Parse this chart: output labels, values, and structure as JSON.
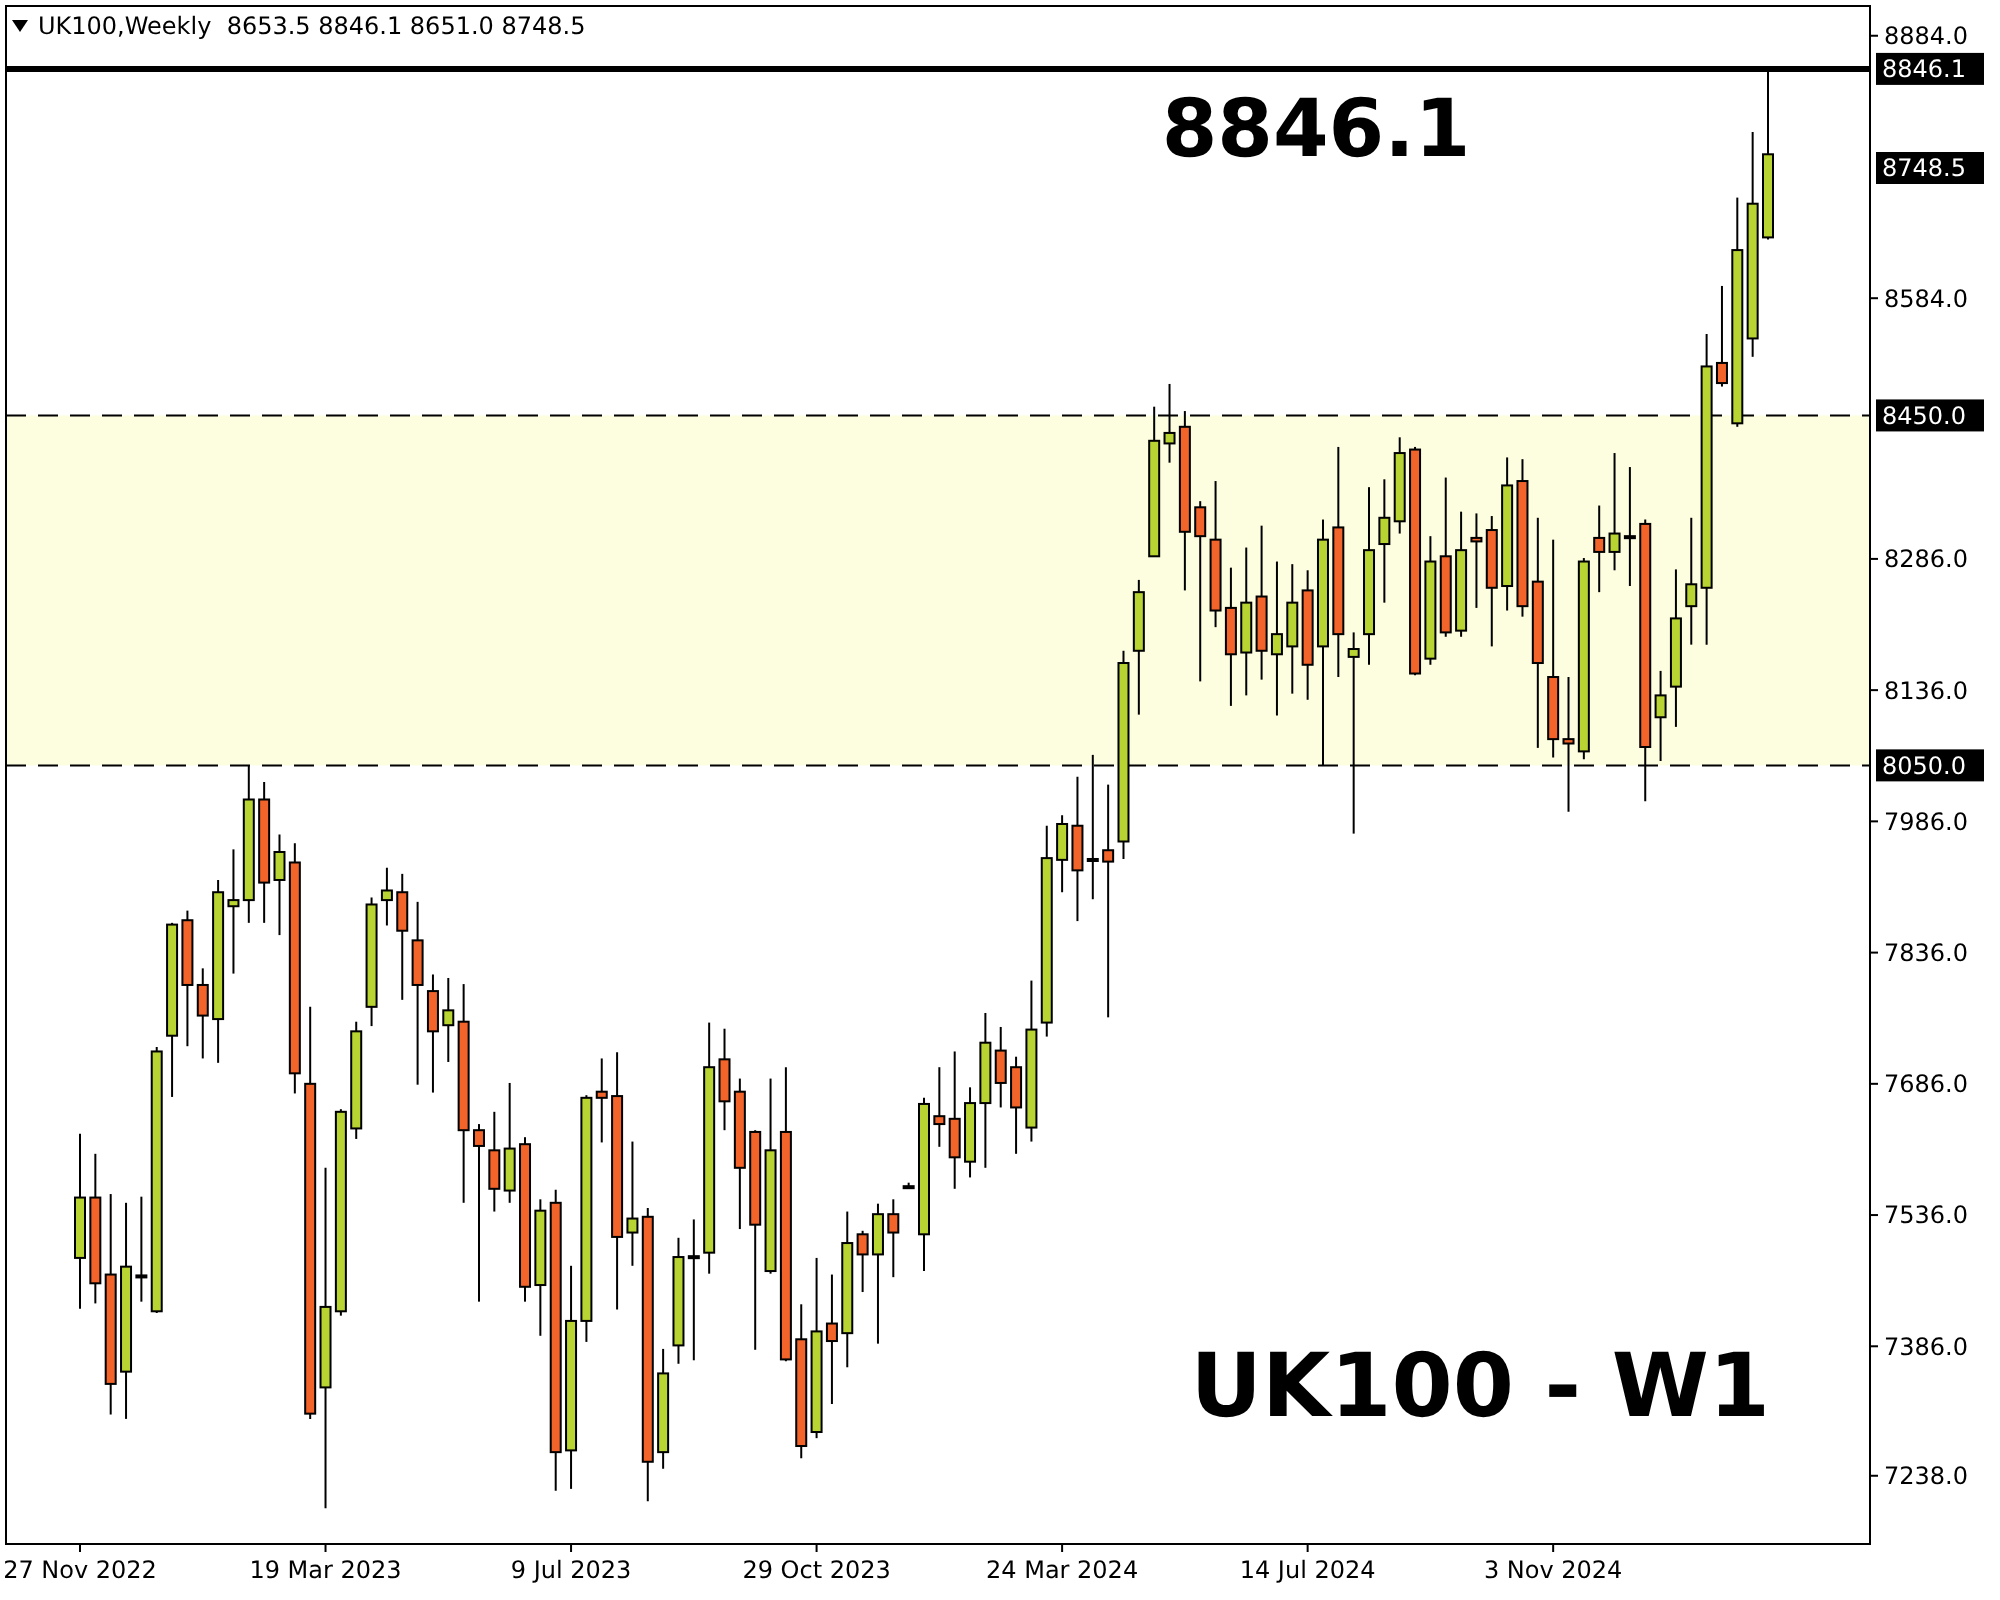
{
  "chart_data": {
    "type": "candlestick",
    "title": "UK100,Weekly  8653.5 8846.1 8651.0 8748.5",
    "annotations": [
      "8846.1",
      "UK100 - W1",
      "8748.5"
    ],
    "categories": [
      "27 Nov 2022",
      null,
      null,
      null,
      null,
      null,
      null,
      null,
      null,
      null,
      null,
      null,
      null,
      null,
      null,
      null,
      "19 Mar 2023",
      null,
      null,
      null,
      null,
      null,
      null,
      null,
      null,
      null,
      null,
      null,
      null,
      null,
      null,
      null,
      "9 Jul 2023",
      null,
      null,
      null,
      null,
      null,
      null,
      null,
      null,
      null,
      null,
      null,
      null,
      null,
      null,
      null,
      "29 Oct 2023",
      null,
      null,
      null,
      null,
      null,
      null,
      null,
      null,
      null,
      null,
      null,
      null,
      null,
      null,
      null,
      "24 Mar 2024",
      null,
      null,
      null,
      null,
      null,
      null,
      null,
      null,
      null,
      null,
      null,
      null,
      null,
      null,
      null,
      "14 Jul 2024",
      null,
      null,
      null,
      null,
      null,
      null,
      null,
      null,
      null,
      null,
      null,
      null,
      null,
      null,
      null,
      "3 Nov 2024",
      null,
      null,
      null,
      null,
      null,
      null,
      null,
      null,
      null,
      null,
      null,
      null,
      null,
      null
    ],
    "ohlc": [
      [
        7487,
        7629,
        7429,
        7556
      ],
      [
        7556,
        7606,
        7435,
        7458
      ],
      [
        7468,
        7560,
        7308,
        7343
      ],
      [
        7357,
        7550,
        7303,
        7477
      ],
      [
        7467,
        7557,
        7437,
        7467
      ],
      [
        7426,
        7728,
        7424,
        7723
      ],
      [
        7741,
        7870,
        7671,
        7868
      ],
      [
        7873,
        7884,
        7729,
        7799
      ],
      [
        7799,
        7818,
        7715,
        7764
      ],
      [
        7760,
        7919,
        7710,
        7905
      ],
      [
        7889,
        7954,
        7812,
        7896
      ],
      [
        7896,
        8050,
        7870,
        8011
      ],
      [
        8011,
        8031,
        7870,
        7916
      ],
      [
        7919,
        7971,
        7856,
        7951
      ],
      [
        7939,
        7961,
        7675,
        7698
      ],
      [
        7686,
        7774,
        7303,
        7309
      ],
      [
        7339,
        7590,
        7201,
        7431
      ],
      [
        7426,
        7657,
        7421,
        7654
      ],
      [
        7635,
        7757,
        7623,
        7746
      ],
      [
        7774,
        7899,
        7752,
        7891
      ],
      [
        7896,
        7933,
        7867,
        7907
      ],
      [
        7905,
        7926,
        7782,
        7861
      ],
      [
        7850,
        7894,
        7685,
        7799
      ],
      [
        7792,
        7811,
        7676,
        7746
      ],
      [
        7753,
        7807,
        7711,
        7770
      ],
      [
        7757,
        7800,
        7550,
        7633
      ],
      [
        7633,
        7640,
        7437,
        7615
      ],
      [
        7610,
        7654,
        7540,
        7566
      ],
      [
        7564,
        7687,
        7550,
        7612
      ],
      [
        7617,
        7625,
        7437,
        7454
      ],
      [
        7456,
        7554,
        7398,
        7541
      ],
      [
        7550,
        7565,
        7221,
        7265
      ],
      [
        7267,
        7478,
        7223,
        7415
      ],
      [
        7415,
        7673,
        7391,
        7670
      ],
      [
        7677,
        7715,
        7619,
        7670
      ],
      [
        7672,
        7722,
        7428,
        7511
      ],
      [
        7516,
        7620,
        7478,
        7532
      ],
      [
        7534,
        7544,
        7209,
        7254
      ],
      [
        7265,
        7383,
        7246,
        7355
      ],
      [
        7387,
        7510,
        7366,
        7488
      ],
      [
        7489,
        7531,
        7370,
        7489
      ],
      [
        7493,
        7756,
        7469,
        7705
      ],
      [
        7714,
        7749,
        7633,
        7666
      ],
      [
        7677,
        7692,
        7520,
        7590
      ],
      [
        7631,
        7633,
        7382,
        7525
      ],
      [
        7472,
        7692,
        7469,
        7610
      ],
      [
        7631,
        7705,
        7369,
        7371
      ],
      [
        7394,
        7434,
        7258,
        7272
      ],
      [
        7288,
        7487,
        7281,
        7403
      ],
      [
        7412,
        7468,
        7320,
        7392
      ],
      [
        7401,
        7540,
        7362,
        7504
      ],
      [
        7514,
        7518,
        7448,
        7491
      ],
      [
        7491,
        7549,
        7389,
        7537
      ],
      [
        7537,
        7554,
        7465,
        7516
      ],
      [
        7569,
        7573,
        7567,
        7569
      ],
      [
        7514,
        7670,
        7472,
        7663
      ],
      [
        7649,
        7705,
        7614,
        7640
      ],
      [
        7646,
        7723,
        7566,
        7602
      ],
      [
        7597,
        7682,
        7579,
        7664
      ],
      [
        7664,
        7767,
        7590,
        7733
      ],
      [
        7724,
        7751,
        7659,
        7687
      ],
      [
        7705,
        7717,
        7606,
        7659
      ],
      [
        7636,
        7804,
        7620,
        7748
      ],
      [
        7756,
        7981,
        7740,
        7944
      ],
      [
        7942,
        7993,
        7905,
        7983
      ],
      [
        7981,
        8037,
        7872,
        7930
      ],
      [
        7943,
        8062,
        7897,
        7943
      ],
      [
        7953,
        8028,
        7762,
        7940
      ],
      [
        7963,
        8181,
        7943,
        8167
      ],
      [
        8181,
        8262,
        8108,
        8248
      ],
      [
        8289,
        8460,
        8289,
        8421
      ],
      [
        8418,
        8486,
        8396,
        8430
      ],
      [
        8437,
        8455,
        8250,
        8317
      ],
      [
        8345,
        8352,
        8146,
        8312
      ],
      [
        8308,
        8375,
        8208,
        8227
      ],
      [
        8230,
        8276,
        8118,
        8177
      ],
      [
        8179,
        8299,
        8130,
        8236
      ],
      [
        8243,
        8324,
        8148,
        8181
      ],
      [
        8177,
        8283,
        8107,
        8200
      ],
      [
        8186,
        8280,
        8132,
        8236
      ],
      [
        8250,
        8273,
        8125,
        8165
      ],
      [
        8186,
        8331,
        8050,
        8308
      ],
      [
        8322,
        8414,
        8151,
        8200
      ],
      [
        8174,
        8202,
        7972,
        8183
      ],
      [
        8200,
        8368,
        8165,
        8296
      ],
      [
        8303,
        8377,
        8236,
        8333
      ],
      [
        8329,
        8425,
        8315,
        8407
      ],
      [
        8411,
        8414,
        8153,
        8155
      ],
      [
        8172,
        8312,
        8165,
        8283
      ],
      [
        8289,
        8379,
        8197,
        8202
      ],
      [
        8204,
        8340,
        8197,
        8296
      ],
      [
        8310,
        8338,
        8230,
        8306
      ],
      [
        8319,
        8335,
        8186,
        8253
      ],
      [
        8255,
        8402,
        8227,
        8370
      ],
      [
        8375,
        8400,
        8220,
        8232
      ],
      [
        8260,
        8333,
        8070,
        8167
      ],
      [
        8151,
        8308,
        8059,
        8080
      ],
      [
        8080,
        8151,
        7997,
        8075
      ],
      [
        8066,
        8287,
        8057,
        8283
      ],
      [
        8310,
        8347,
        8248,
        8294
      ],
      [
        8294,
        8407,
        8273,
        8315
      ],
      [
        8312,
        8391,
        8255,
        8312
      ],
      [
        8326,
        8331,
        8009,
        8071
      ],
      [
        8105,
        8158,
        8055,
        8130
      ],
      [
        8140,
        8274,
        8094,
        8218
      ],
      [
        8232,
        8333,
        8188,
        8257
      ],
      [
        8253,
        8543,
        8188,
        8506
      ],
      [
        8510,
        8598,
        8483,
        8487
      ],
      [
        8441,
        8699,
        8437,
        8639
      ],
      [
        8538,
        8774,
        8517,
        8692
      ],
      [
        8653.5,
        8846.1,
        8651.0,
        8748.5
      ]
    ],
    "colors": [
      "#b8d432",
      "#f2642a",
      "#f2642a",
      "#b8d432",
      "#b8d432",
      "#b8d432",
      "#b8d432",
      "#f2642a",
      "#f2642a",
      "#b8d432",
      "#b8d432",
      "#b8d432",
      "#f2642a",
      "#b8d432",
      "#f2642a",
      "#f2642a",
      "#b8d432",
      "#b8d432",
      "#b8d432",
      "#b8d432",
      "#b8d432",
      "#f2642a",
      "#f2642a",
      "#f2642a",
      "#b8d432",
      "#f2642a",
      "#f2642a",
      "#f2642a",
      "#b8d432",
      "#f2642a",
      "#b8d432",
      "#f2642a",
      "#b8d432",
      "#b8d432",
      "#f2642a",
      "#f2642a",
      "#b8d432",
      "#f2642a",
      "#b8d432",
      "#b8d432",
      "#b8d432",
      "#b8d432",
      "#f2642a",
      "#f2642a",
      "#f2642a",
      "#b8d432",
      "#f2642a",
      "#f2642a",
      "#b8d432",
      "#f2642a",
      "#b8d432",
      "#f2642a",
      "#b8d432",
      "#f2642a",
      "#b8d432",
      "#b8d432",
      "#f2642a",
      "#f2642a",
      "#b8d432",
      "#b8d432",
      "#f2642a",
      "#f2642a",
      "#b8d432",
      "#b8d432",
      "#b8d432",
      "#f2642a",
      "#b8d432",
      "#f2642a",
      "#b8d432",
      "#b8d432",
      "#b8d432",
      "#b8d432",
      "#f2642a",
      "#f2642a",
      "#f2642a",
      "#f2642a",
      "#b8d432",
      "#f2642a",
      "#b8d432",
      "#b8d432",
      "#f2642a",
      "#b8d432",
      "#f2642a",
      "#b8d432",
      "#b8d432",
      "#b8d432",
      "#b8d432",
      "#f2642a",
      "#b8d432",
      "#f2642a",
      "#b8d432",
      "#f2642a",
      "#f2642a",
      "#b8d432",
      "#f2642a",
      "#f2642a",
      "#f2642a",
      "#f2642a",
      "#b8d432",
      "#f2642a",
      "#b8d432",
      "#b8d432",
      "#f2642a",
      "#b8d432",
      "#b8d432",
      "#b8d432",
      "#b8d432",
      "#f2642a",
      "#b8d432",
      "#b8d432",
      "#b8d432"
    ],
    "ylim": [
      7160,
      8918
    ],
    "yticks": [
      {
        "value": 8884,
        "label": "8884.0"
      },
      {
        "value": 8584,
        "label": "8584.0"
      },
      {
        "value": 8286,
        "label": "8286.0"
      },
      {
        "value": 8136,
        "label": "8136.0"
      },
      {
        "value": 7986,
        "label": "7986.0"
      },
      {
        "value": 7836,
        "label": "7836.0"
      },
      {
        "value": 7686,
        "label": "7686.0"
      },
      {
        "value": 7536,
        "label": "7536.0"
      },
      {
        "value": 7386,
        "label": "7386.0"
      },
      {
        "value": 7238,
        "label": "7238.0"
      }
    ],
    "ref_lines": [
      {
        "axis": "y",
        "value": 8846.1,
        "label": "8846.1",
        "line_style": "solid"
      },
      {
        "axis": "y",
        "value": 8450,
        "label": "8450.0",
        "line_style": "dashed"
      },
      {
        "axis": "y",
        "value": 8050,
        "label": "8050.0",
        "line_style": "dashed"
      }
    ],
    "bands": [
      {
        "axis": "y",
        "from": 8050,
        "to": 8450,
        "color": "#fdfde0"
      }
    ]
  }
}
